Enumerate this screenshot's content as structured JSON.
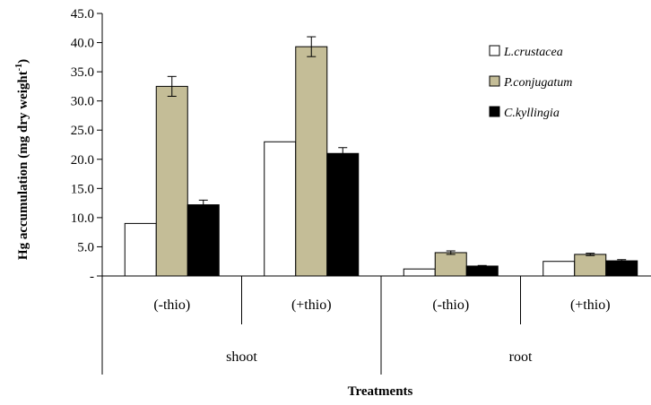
{
  "chart_data": {
    "type": "bar",
    "ylabel_main": "Hg accumulation (mg dry weight",
    "ylabel_sup": "-1",
    "ylabel_close": ")",
    "xlabel": "Treatments",
    "ylim": [
      0,
      45
    ],
    "yticks": [
      0,
      5,
      10,
      15,
      20,
      25,
      30,
      35,
      40,
      45
    ],
    "ytick_labels": [
      "-",
      "5.0",
      "10.0",
      "15.0",
      "20.0",
      "25.0",
      "30.0",
      "35.0",
      "40.0",
      "45.0"
    ],
    "legend_position": "top-right",
    "groups": [
      {
        "label": "shoot",
        "categories": [
          "(-thio)",
          "(+thio)"
        ]
      },
      {
        "label": "root",
        "categories": [
          "(-thio)",
          "(+thio)"
        ]
      }
    ],
    "series": [
      {
        "name": "L.crustacea",
        "color": "#ffffff",
        "values": [
          9.0,
          23.0,
          1.2,
          2.5
        ],
        "errors": [
          0,
          0,
          0,
          0
        ]
      },
      {
        "name": "P.conjugatum",
        "color": "#c4bd97",
        "values": [
          32.5,
          39.3,
          4.0,
          3.7
        ],
        "errors": [
          1.7,
          1.7,
          0.3,
          0.2
        ]
      },
      {
        "name": "C.kyllingia",
        "color": "#000000",
        "values": [
          12.2,
          21.0,
          1.7,
          2.6
        ],
        "errors": [
          0.8,
          1.0,
          0.1,
          0.2
        ]
      }
    ]
  }
}
